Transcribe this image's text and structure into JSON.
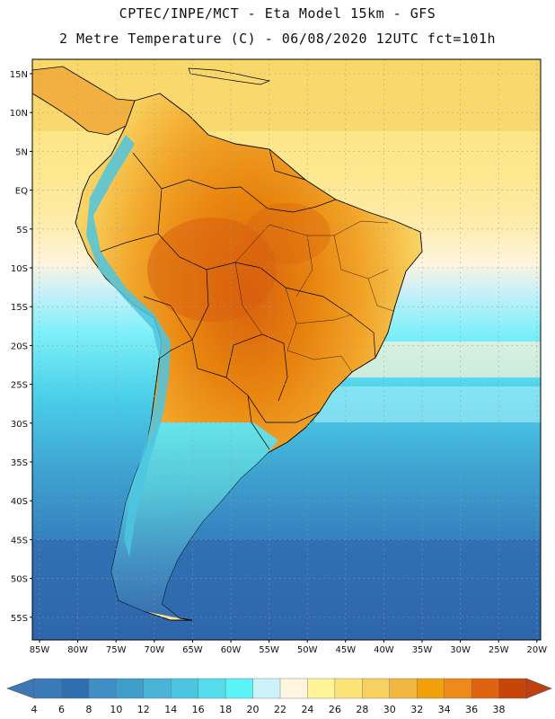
{
  "header": {
    "line1": "CPTEC/INPE/MCT -  Eta Model 15km - GFS",
    "line2": "2 Metre Temperature (C) - 06/08/2020 12UTC fct=101h"
  },
  "axes": {
    "lat_labels": [
      "15N",
      "10N",
      "5N",
      "EQ",
      "5S",
      "10S",
      "15S",
      "20S",
      "25S",
      "30S",
      "35S",
      "40S",
      "45S",
      "50S",
      "55S"
    ],
    "lon_labels": [
      "85W",
      "80W",
      "75W",
      "70W",
      "65W",
      "60W",
      "55W",
      "50W",
      "45W",
      "40W",
      "35W",
      "30W",
      "25W",
      "20W"
    ]
  },
  "colorbar": {
    "ticks": [
      "4",
      "6",
      "8",
      "10",
      "12",
      "14",
      "16",
      "18",
      "20",
      "22",
      "24",
      "26",
      "28",
      "30",
      "32",
      "34",
      "36",
      "38"
    ],
    "colors": [
      "#3a7ab8",
      "#2f6fb0",
      "#3f8ec6",
      "#3f9dca",
      "#4ab4d8",
      "#4cc6e0",
      "#54dcec",
      "#5af4f8",
      "#ccf2fa",
      "#fff6e0",
      "#fff498",
      "#fde478",
      "#f8d060",
      "#f0b840",
      "#f2a00a",
      "#ec8a1a",
      "#e06410",
      "#c84508"
    ],
    "end_low_color": "#3b78b5",
    "end_high_color": "#c04010"
  }
}
